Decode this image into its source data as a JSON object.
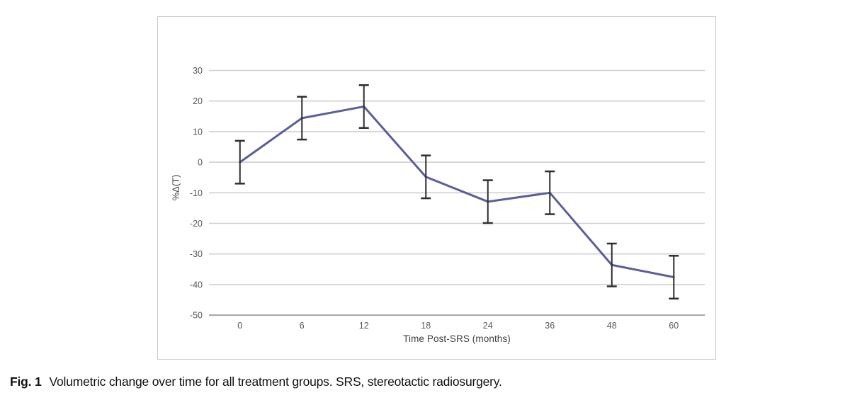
{
  "figure": {
    "caption_label": "Fig. 1",
    "caption_text": "Volumetric change over time for all treatment groups. SRS, stereotactic radiosurgery."
  },
  "chart_data": {
    "type": "line",
    "title": "",
    "xlabel": "Time Post-SRS (months)",
    "ylabel": "%Δ(T)",
    "categories": [
      "0",
      "6",
      "12",
      "18",
      "24",
      "36",
      "48",
      "60"
    ],
    "series": [
      {
        "name": "All treatment groups",
        "values": [
          0,
          14.4,
          18.2,
          -4.8,
          -12.9,
          -10,
          -33.6,
          -37.6
        ],
        "error": [
          7,
          7,
          7,
          7,
          7,
          7,
          7,
          7
        ]
      }
    ],
    "yticks": [
      30,
      20,
      10,
      0,
      -10,
      -20,
      -30,
      -40,
      -50
    ],
    "ylim": [
      -50,
      30
    ],
    "grid": true,
    "legend": "none",
    "colors": {
      "line": "#5b5f99",
      "error_bar": "#2d2d2d",
      "gridline": "#d0d0d0",
      "axis_line": "#a3a3a3",
      "tick_text": "#595959",
      "frame_border": "#c9c9c9"
    }
  }
}
